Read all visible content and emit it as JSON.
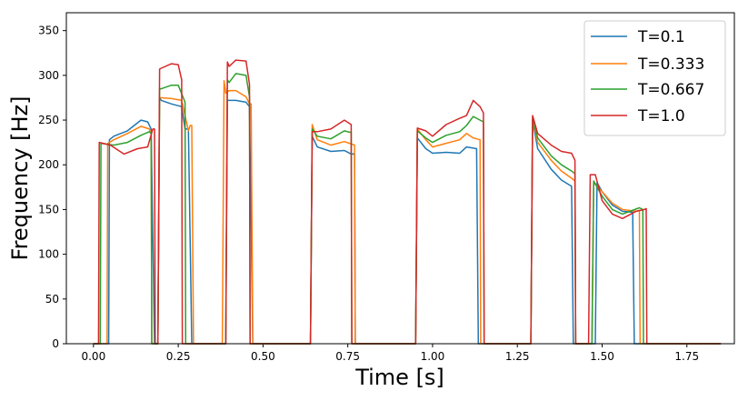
{
  "chart_data": {
    "type": "line",
    "title": "",
    "xlabel": "Time [s]",
    "ylabel": "Frequency [Hz]",
    "xlim": [
      -0.08,
      1.89
    ],
    "ylim": [
      0,
      370
    ],
    "xticks": [
      0.0,
      0.25,
      0.5,
      0.75,
      1.0,
      1.25,
      1.5,
      1.75
    ],
    "xtick_labels": [
      "0.00",
      "0.25",
      "0.50",
      "0.75",
      "1.00",
      "1.25",
      "1.50",
      "1.75"
    ],
    "yticks": [
      0,
      50,
      100,
      150,
      200,
      250,
      300,
      350
    ],
    "ytick_labels": [
      "0",
      "50",
      "100",
      "150",
      "200",
      "250",
      "300",
      "350"
    ],
    "legend_position": "top-right",
    "series": [
      {
        "name": "T=0.1",
        "color": "#1f77b4",
        "x": [
          0.0,
          0.045,
          0.047,
          0.06,
          0.1,
          0.14,
          0.16,
          0.17,
          0.18,
          0.19,
          0.195,
          0.2,
          0.23,
          0.26,
          0.27,
          0.28,
          0.29,
          0.38,
          0.39,
          0.395,
          0.42,
          0.45,
          0.46,
          0.47,
          0.475,
          0.64,
          0.645,
          0.66,
          0.7,
          0.74,
          0.76,
          0.77,
          0.772,
          0.95,
          0.955,
          0.98,
          1.0,
          1.04,
          1.08,
          1.1,
          1.13,
          1.135,
          1.14,
          1.29,
          1.295,
          1.31,
          1.35,
          1.38,
          1.41,
          1.415,
          1.48,
          1.485,
          1.5,
          1.53,
          1.56,
          1.59,
          1.595,
          1.6,
          1.85
        ],
        "y": [
          0,
          0,
          228,
          232,
          238,
          250,
          248,
          240,
          0,
          0,
          275,
          272,
          268,
          265,
          240,
          240,
          0,
          0,
          0,
          272,
          272,
          270,
          265,
          0,
          0,
          0,
          232,
          220,
          215,
          216,
          212,
          212,
          0,
          0,
          230,
          218,
          213,
          214,
          213,
          220,
          218,
          0,
          0,
          0,
          250,
          218,
          195,
          183,
          176,
          0,
          0,
          180,
          170,
          155,
          148,
          147,
          0,
          0,
          0
        ]
      },
      {
        "name": "T=0.333",
        "color": "#ff7f0e",
        "x": [
          0.0,
          0.04,
          0.042,
          0.06,
          0.1,
          0.14,
          0.165,
          0.17,
          0.172,
          0.19,
          0.195,
          0.2,
          0.23,
          0.26,
          0.28,
          0.285,
          0.29,
          0.295,
          0.38,
          0.385,
          0.39,
          0.4,
          0.42,
          0.45,
          0.46,
          0.465,
          0.47,
          0.64,
          0.645,
          0.66,
          0.7,
          0.74,
          0.77,
          0.772,
          0.95,
          0.955,
          0.98,
          1.0,
          1.04,
          1.08,
          1.1,
          1.12,
          1.14,
          1.142,
          1.29,
          1.295,
          1.31,
          1.35,
          1.38,
          1.41,
          1.42,
          1.422,
          1.47,
          1.475,
          1.5,
          1.53,
          1.56,
          1.6,
          1.61,
          1.612,
          1.85
        ],
        "y": [
          0,
          0,
          224,
          228,
          235,
          243,
          240,
          235,
          0,
          0,
          275,
          275,
          274,
          272,
          238,
          244,
          244,
          0,
          0,
          294,
          280,
          283,
          283,
          276,
          268,
          268,
          0,
          0,
          245,
          228,
          222,
          226,
          222,
          0,
          0,
          240,
          228,
          220,
          224,
          228,
          235,
          230,
          228,
          0,
          0,
          252,
          225,
          205,
          193,
          185,
          182,
          0,
          0,
          180,
          170,
          157,
          150,
          148,
          149,
          0,
          0
        ]
      },
      {
        "name": "T=0.667",
        "color": "#2ca02c",
        "x": [
          0.0,
          0.02,
          0.022,
          0.06,
          0.1,
          0.14,
          0.165,
          0.17,
          0.172,
          0.19,
          0.195,
          0.2,
          0.23,
          0.25,
          0.27,
          0.272,
          0.39,
          0.395,
          0.4,
          0.42,
          0.45,
          0.46,
          0.462,
          0.64,
          0.645,
          0.66,
          0.7,
          0.74,
          0.76,
          0.762,
          0.95,
          0.955,
          0.98,
          1.0,
          1.04,
          1.08,
          1.1,
          1.12,
          1.14,
          1.15,
          1.152,
          1.29,
          1.295,
          1.31,
          1.35,
          1.38,
          1.41,
          1.42,
          1.422,
          1.47,
          1.475,
          1.5,
          1.53,
          1.56,
          1.61,
          1.62,
          1.622,
          1.85
        ],
        "y": [
          0,
          0,
          224,
          222,
          225,
          233,
          237,
          235,
          0,
          0,
          285,
          285,
          289,
          289,
          270,
          0,
          0,
          295,
          292,
          302,
          300,
          276,
          0,
          0,
          240,
          232,
          229,
          238,
          236,
          0,
          0,
          238,
          230,
          225,
          233,
          237,
          244,
          254,
          250,
          248,
          0,
          0,
          253,
          230,
          210,
          200,
          193,
          190,
          0,
          0,
          182,
          165,
          150,
          145,
          152,
          150,
          0,
          0
        ]
      },
      {
        "name": "T=1.0",
        "color": "#d62728",
        "x": [
          0.0,
          0.015,
          0.017,
          0.05,
          0.09,
          0.13,
          0.16,
          0.175,
          0.18,
          0.182,
          0.19,
          0.195,
          0.2,
          0.23,
          0.25,
          0.26,
          0.262,
          0.39,
          0.395,
          0.4,
          0.42,
          0.45,
          0.46,
          0.462,
          0.64,
          0.645,
          0.66,
          0.7,
          0.74,
          0.76,
          0.762,
          0.95,
          0.955,
          0.98,
          1.0,
          1.04,
          1.08,
          1.1,
          1.12,
          1.14,
          1.15,
          1.152,
          1.29,
          1.295,
          1.31,
          1.35,
          1.38,
          1.41,
          1.42,
          1.422,
          1.46,
          1.465,
          1.48,
          1.5,
          1.53,
          1.56,
          1.6,
          1.625,
          1.63,
          1.632,
          1.85
        ],
        "y": [
          0,
          0,
          225,
          222,
          212,
          218,
          220,
          240,
          240,
          0,
          0,
          307,
          308,
          313,
          312,
          295,
          0,
          0,
          315,
          310,
          317,
          316,
          290,
          0,
          0,
          237,
          237,
          240,
          250,
          245,
          0,
          0,
          241,
          238,
          232,
          245,
          252,
          255,
          272,
          265,
          258,
          0,
          0,
          255,
          235,
          222,
          215,
          213,
          205,
          0,
          0,
          189,
          189,
          160,
          145,
          140,
          148,
          150,
          151,
          0,
          0
        ]
      }
    ]
  }
}
